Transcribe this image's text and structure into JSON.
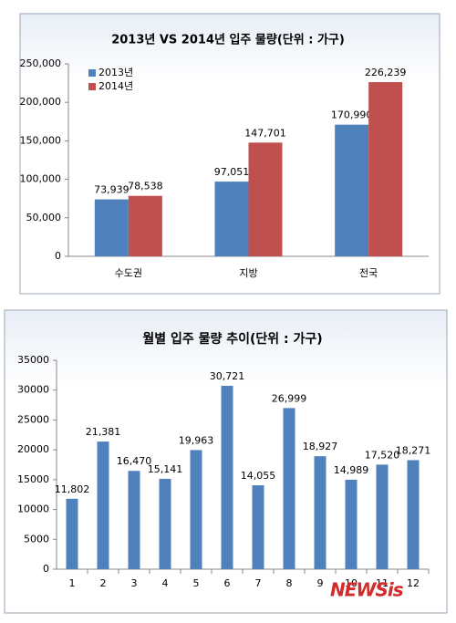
{
  "chart_data": [
    {
      "type": "bar",
      "title": "2013년  VS 2014년 입주 물량(단위 : 가구)",
      "categories": [
        "수도권",
        "지방",
        "전국"
      ],
      "series": [
        {
          "name": "2013년",
          "color": "#4f81bd",
          "values": [
            73939,
            97051,
            170990
          ],
          "value_labels": [
            "73,939",
            "97,051",
            "170,990"
          ]
        },
        {
          "name": "2014년",
          "color": "#c0504d",
          "values": [
            78538,
            147701,
            226239
          ],
          "value_labels": [
            "78,538",
            "147,701",
            "226,239"
          ]
        }
      ],
      "ylim": [
        0,
        250000
      ],
      "yticks": [
        0,
        {
          "value": 50000,
          "label": "50,000"
        },
        {
          "value": 100000,
          "label": "100,000"
        },
        {
          "value": 150000,
          "label": "150,000"
        },
        {
          "value": 200000,
          "label": "200,000"
        },
        {
          "value": 250000,
          "label": "250,000"
        }
      ],
      "legend": "top-left"
    },
    {
      "type": "bar",
      "title": "월별 입주 물량 추이(단위 : 가구)",
      "categories": [
        "1",
        "2",
        "3",
        "4",
        "5",
        "6",
        "7",
        "8",
        "9",
        "10",
        "11",
        "12"
      ],
      "series": [
        {
          "color": "#4f81bd",
          "values": [
            11802,
            21381,
            16470,
            15141,
            19963,
            30721,
            14055,
            26999,
            18927,
            14989,
            17520,
            18271
          ],
          "value_labels": [
            "11,802",
            "21,381",
            "16,470",
            "15,141",
            "19,963",
            "30,721",
            "14,055",
            "26,999",
            "18,927",
            "14,989",
            "17,520",
            "18,271"
          ]
        }
      ],
      "ylim": [
        0,
        35000
      ],
      "yticks": [
        0,
        5000,
        10000,
        15000,
        20000,
        25000,
        30000,
        35000
      ]
    }
  ],
  "watermark": "NEWSis"
}
